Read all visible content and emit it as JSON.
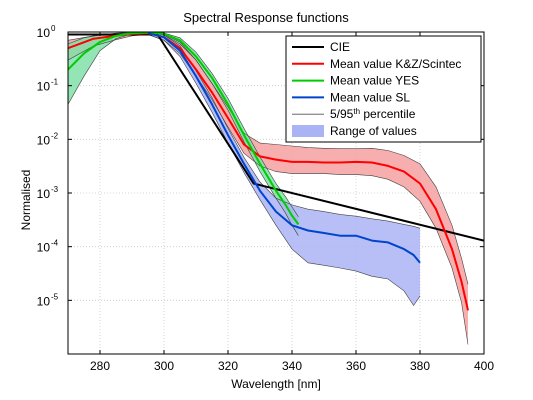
{
  "chart_data": {
    "type": "line",
    "title": "Spectral Response functions",
    "xlabel": "Wavelength [nm]",
    "ylabel": "Normalised",
    "xlim": [
      270,
      400
    ],
    "ylim": [
      1e-06,
      1
    ],
    "yscale": "log",
    "grid": true,
    "legend_position": "top-right",
    "x_ticks": [
      "280",
      "300",
      "320",
      "340",
      "360",
      "380",
      "400"
    ],
    "y_ticks": [
      {
        "base": "10",
        "exp": "0",
        "value": 1
      },
      {
        "base": "10",
        "exp": "-1",
        "value": 0.1
      },
      {
        "base": "10",
        "exp": "-2",
        "value": 0.01
      },
      {
        "base": "10",
        "exp": "-3",
        "value": 0.001
      },
      {
        "base": "10",
        "exp": "-4",
        "value": 0.0001
      },
      {
        "base": "10",
        "exp": "-5",
        "value": 1e-05
      }
    ],
    "legend": [
      {
        "label": "CIE",
        "color": "#000000",
        "kind": "line"
      },
      {
        "label": "Mean value K&Z/Scintec",
        "color": "#ff0000",
        "kind": "line"
      },
      {
        "label": "Mean value YES",
        "color": "#00cc00",
        "kind": "line"
      },
      {
        "label": "Mean value SL",
        "color": "#0044cc",
        "kind": "line"
      },
      {
        "label_pre": "5/95",
        "label_sup": "th",
        "label_post": " percentile",
        "color": "#555555",
        "kind": "thin"
      },
      {
        "label": "Range of values",
        "color": "#aab4f5",
        "kind": "patch"
      }
    ],
    "series": [
      {
        "name": "CIE",
        "color": "#000000",
        "x": [
          270,
          298,
          328,
          400
        ],
        "y": [
          0.9,
          0.9,
          0.0015,
          0.00013
        ]
      },
      {
        "name": "Mean value K&Z/Scintec",
        "color": "#ff0000",
        "fill": "#f4a0a0",
        "x": [
          270,
          278,
          285,
          290,
          295,
          300,
          305,
          310,
          315,
          320,
          325,
          330,
          335,
          340,
          345,
          350,
          355,
          360,
          365,
          370,
          375,
          380,
          385,
          390,
          393,
          395
        ],
        "y": [
          0.5,
          0.75,
          0.85,
          0.92,
          0.95,
          0.8,
          0.5,
          0.2,
          0.075,
          0.025,
          0.008,
          0.0048,
          0.0042,
          0.0038,
          0.0038,
          0.0037,
          0.0037,
          0.0038,
          0.0037,
          0.0032,
          0.0025,
          0.0015,
          0.0005,
          9e-05,
          2.2e-05,
          6.5e-06
        ],
        "low": [
          0.3,
          0.55,
          0.72,
          0.85,
          0.9,
          0.7,
          0.4,
          0.15,
          0.055,
          0.017,
          0.0055,
          0.0032,
          0.0025,
          0.0023,
          0.0023,
          0.0023,
          0.0022,
          0.0022,
          0.0021,
          0.0018,
          0.0013,
          0.0007,
          0.00022,
          4e-05,
          9e-06,
          1.5e-06
        ],
        "high": [
          0.7,
          0.85,
          0.92,
          0.96,
          0.98,
          0.9,
          0.65,
          0.3,
          0.11,
          0.04,
          0.013,
          0.0085,
          0.008,
          0.0075,
          0.007,
          0.0068,
          0.0067,
          0.0067,
          0.0068,
          0.0062,
          0.005,
          0.0035,
          0.0013,
          0.00025,
          6e-05,
          2e-05
        ]
      },
      {
        "name": "Mean value YES",
        "color": "#00cc00",
        "fill": "#80e0a8",
        "x": [
          270,
          275,
          280,
          285,
          290,
          295,
          300,
          305,
          310,
          315,
          320,
          325,
          330,
          335,
          338,
          340,
          342
        ],
        "y": [
          0.2,
          0.4,
          0.65,
          0.85,
          0.95,
          0.98,
          0.92,
          0.7,
          0.35,
          0.14,
          0.045,
          0.012,
          0.0035,
          0.0011,
          0.0006,
          0.00038,
          0.00026
        ],
        "low": [
          0.045,
          0.15,
          0.45,
          0.75,
          0.92,
          0.97,
          0.88,
          0.6,
          0.3,
          0.11,
          0.035,
          0.009,
          0.0025,
          0.0008,
          0.00042,
          0.00025,
          0.00016
        ],
        "high": [
          0.6,
          0.78,
          0.88,
          0.95,
          0.99,
          1.0,
          0.96,
          0.78,
          0.42,
          0.17,
          0.058,
          0.016,
          0.0047,
          0.0015,
          0.00085,
          0.00055,
          0.00036
        ]
      },
      {
        "name": "Mean value SL",
        "color": "#0044cc",
        "fill": "#aab4f5",
        "x": [
          295,
          300,
          305,
          310,
          315,
          320,
          325,
          330,
          335,
          340,
          345,
          350,
          355,
          360,
          365,
          370,
          375,
          378,
          380
        ],
        "y": [
          0.95,
          0.8,
          0.45,
          0.15,
          0.045,
          0.012,
          0.0035,
          0.0011,
          0.00045,
          0.00025,
          0.0002,
          0.00018,
          0.00016,
          0.00016,
          0.00013,
          0.00012,
          9e-05,
          7e-05,
          5e-05
        ],
        "low": [
          0.9,
          0.7,
          0.35,
          0.11,
          0.032,
          0.0085,
          0.0024,
          0.00075,
          0.00025,
          9e-05,
          5e-05,
          4.5e-05,
          4e-05,
          3.5e-05,
          2.8e-05,
          2.5e-05,
          1.5e-05,
          8e-06,
          1.2e-05
        ],
        "high": [
          0.98,
          0.88,
          0.55,
          0.19,
          0.06,
          0.016,
          0.0046,
          0.0016,
          0.0008,
          0.0006,
          0.0005,
          0.00045,
          0.0004,
          0.00037,
          0.00033,
          0.0003,
          0.00026,
          0.00024,
          0.00022
        ]
      }
    ]
  }
}
